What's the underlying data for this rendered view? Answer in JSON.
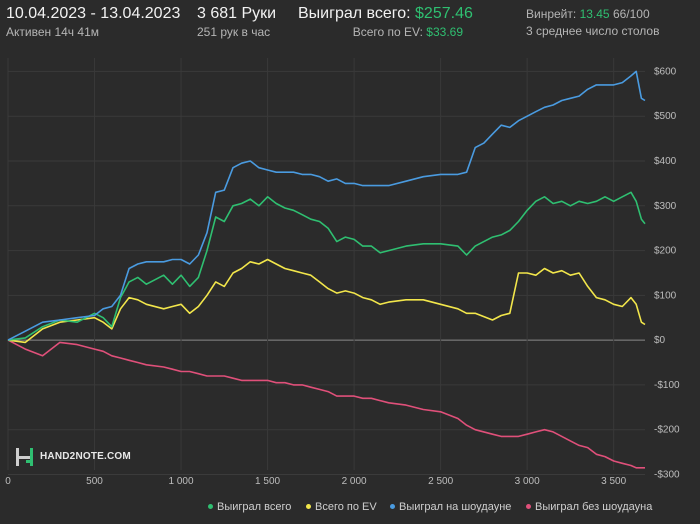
{
  "header": {
    "date_range": "10.04.2023 - 13.04.2023",
    "active_label": "Активен 14ч 41м",
    "hands": "3 681 Руки",
    "hands_per_hour": "251 рук в час",
    "won_total_label": "Выиграл всего:",
    "won_total_value": "$257.46",
    "ev_label": "Всего по EV:",
    "ev_value": "$33.69",
    "winrate_label": "Винрейт:",
    "winrate_value": "13.45",
    "winrate_extra": "66/100",
    "tables_label": "3 среднее число столов"
  },
  "logo": {
    "text": "HAND2NOTE.COM"
  },
  "colors": {
    "background": "#2b2b2b",
    "won_total": "#2fbf71",
    "ev": "#f2e64b",
    "showdown": "#4a9be0",
    "non_showdown": "#e0507a",
    "accent_green": "#2fbf71"
  },
  "chart_data": {
    "type": "line",
    "xlim": [
      0,
      3681
    ],
    "ylim": [
      -290,
      630
    ],
    "x_ticks": [
      0,
      500,
      1000,
      1500,
      2000,
      2500,
      3000,
      3500
    ],
    "x_tick_labels": [
      "0",
      "500",
      "1 000",
      "1 500",
      "2 000",
      "2 500",
      "3 000",
      "3 500"
    ],
    "y_ticks": [
      -300,
      -200,
      -100,
      0,
      100,
      200,
      300,
      400,
      500,
      600
    ],
    "y_tick_labels": [
      "-$300",
      "-$200",
      "-$100",
      "$0",
      "$100",
      "$200",
      "$300",
      "$400",
      "$500",
      "$600"
    ],
    "grid": true,
    "legend_position": "bottom-right",
    "series": [
      {
        "name": "Выиграл всего",
        "color": "#2fbf71",
        "points": [
          [
            0,
            0
          ],
          [
            100,
            5
          ],
          [
            200,
            30
          ],
          [
            300,
            45
          ],
          [
            400,
            40
          ],
          [
            500,
            60
          ],
          [
            550,
            50
          ],
          [
            600,
            30
          ],
          [
            650,
            95
          ],
          [
            700,
            130
          ],
          [
            750,
            140
          ],
          [
            800,
            125
          ],
          [
            900,
            145
          ],
          [
            950,
            125
          ],
          [
            1000,
            145
          ],
          [
            1050,
            120
          ],
          [
            1100,
            140
          ],
          [
            1150,
            200
          ],
          [
            1200,
            275
          ],
          [
            1250,
            265
          ],
          [
            1300,
            300
          ],
          [
            1350,
            305
          ],
          [
            1400,
            315
          ],
          [
            1450,
            300
          ],
          [
            1500,
            320
          ],
          [
            1550,
            305
          ],
          [
            1600,
            295
          ],
          [
            1650,
            290
          ],
          [
            1700,
            280
          ],
          [
            1750,
            270
          ],
          [
            1800,
            265
          ],
          [
            1850,
            250
          ],
          [
            1900,
            220
          ],
          [
            1950,
            230
          ],
          [
            2000,
            225
          ],
          [
            2050,
            210
          ],
          [
            2100,
            210
          ],
          [
            2150,
            195
          ],
          [
            2200,
            200
          ],
          [
            2300,
            210
          ],
          [
            2400,
            215
          ],
          [
            2500,
            215
          ],
          [
            2600,
            210
          ],
          [
            2650,
            190
          ],
          [
            2700,
            210
          ],
          [
            2800,
            230
          ],
          [
            2850,
            235
          ],
          [
            2900,
            245
          ],
          [
            2950,
            265
          ],
          [
            3000,
            290
          ],
          [
            3050,
            310
          ],
          [
            3100,
            320
          ],
          [
            3150,
            305
          ],
          [
            3200,
            310
          ],
          [
            3250,
            300
          ],
          [
            3300,
            310
          ],
          [
            3350,
            305
          ],
          [
            3400,
            310
          ],
          [
            3450,
            320
          ],
          [
            3500,
            310
          ],
          [
            3550,
            320
          ],
          [
            3600,
            330
          ],
          [
            3630,
            310
          ],
          [
            3660,
            270
          ],
          [
            3681,
            260
          ]
        ]
      },
      {
        "name": "Всего по EV",
        "color": "#f2e64b",
        "points": [
          [
            0,
            0
          ],
          [
            100,
            -5
          ],
          [
            200,
            25
          ],
          [
            300,
            40
          ],
          [
            400,
            45
          ],
          [
            500,
            50
          ],
          [
            550,
            40
          ],
          [
            600,
            25
          ],
          [
            650,
            70
          ],
          [
            700,
            95
          ],
          [
            750,
            90
          ],
          [
            800,
            80
          ],
          [
            900,
            70
          ],
          [
            950,
            75
          ],
          [
            1000,
            80
          ],
          [
            1050,
            60
          ],
          [
            1100,
            75
          ],
          [
            1150,
            100
          ],
          [
            1200,
            130
          ],
          [
            1250,
            120
          ],
          [
            1300,
            150
          ],
          [
            1350,
            160
          ],
          [
            1400,
            175
          ],
          [
            1450,
            170
          ],
          [
            1500,
            180
          ],
          [
            1550,
            170
          ],
          [
            1600,
            160
          ],
          [
            1650,
            155
          ],
          [
            1700,
            150
          ],
          [
            1750,
            145
          ],
          [
            1800,
            130
          ],
          [
            1850,
            115
          ],
          [
            1900,
            105
          ],
          [
            1950,
            110
          ],
          [
            2000,
            105
          ],
          [
            2050,
            95
          ],
          [
            2100,
            90
          ],
          [
            2150,
            80
          ],
          [
            2200,
            85
          ],
          [
            2300,
            90
          ],
          [
            2400,
            90
          ],
          [
            2500,
            80
          ],
          [
            2600,
            70
          ],
          [
            2650,
            60
          ],
          [
            2700,
            60
          ],
          [
            2800,
            45
          ],
          [
            2850,
            55
          ],
          [
            2900,
            60
          ],
          [
            2950,
            150
          ],
          [
            3000,
            150
          ],
          [
            3050,
            145
          ],
          [
            3100,
            160
          ],
          [
            3150,
            150
          ],
          [
            3200,
            155
          ],
          [
            3250,
            145
          ],
          [
            3300,
            150
          ],
          [
            3350,
            120
          ],
          [
            3400,
            95
          ],
          [
            3450,
            90
          ],
          [
            3500,
            80
          ],
          [
            3550,
            75
          ],
          [
            3600,
            95
          ],
          [
            3630,
            80
          ],
          [
            3660,
            40
          ],
          [
            3681,
            35
          ]
        ]
      },
      {
        "name": "Выиграл на шоудауне",
        "color": "#4a9be0",
        "points": [
          [
            0,
            0
          ],
          [
            100,
            20
          ],
          [
            200,
            40
          ],
          [
            300,
            45
          ],
          [
            400,
            50
          ],
          [
            500,
            55
          ],
          [
            550,
            70
          ],
          [
            600,
            75
          ],
          [
            650,
            100
          ],
          [
            700,
            160
          ],
          [
            750,
            170
          ],
          [
            800,
            175
          ],
          [
            900,
            175
          ],
          [
            950,
            180
          ],
          [
            1000,
            180
          ],
          [
            1050,
            170
          ],
          [
            1100,
            190
          ],
          [
            1150,
            240
          ],
          [
            1200,
            330
          ],
          [
            1250,
            335
          ],
          [
            1300,
            385
          ],
          [
            1350,
            395
          ],
          [
            1400,
            400
          ],
          [
            1450,
            385
          ],
          [
            1500,
            380
          ],
          [
            1550,
            375
          ],
          [
            1600,
            375
          ],
          [
            1650,
            375
          ],
          [
            1700,
            370
          ],
          [
            1750,
            370
          ],
          [
            1800,
            365
          ],
          [
            1850,
            355
          ],
          [
            1900,
            360
          ],
          [
            1950,
            350
          ],
          [
            2000,
            350
          ],
          [
            2050,
            345
          ],
          [
            2100,
            345
          ],
          [
            2150,
            345
          ],
          [
            2200,
            345
          ],
          [
            2300,
            355
          ],
          [
            2400,
            365
          ],
          [
            2500,
            370
          ],
          [
            2600,
            370
          ],
          [
            2650,
            375
          ],
          [
            2700,
            430
          ],
          [
            2750,
            440
          ],
          [
            2800,
            460
          ],
          [
            2850,
            480
          ],
          [
            2900,
            475
          ],
          [
            2950,
            490
          ],
          [
            3000,
            500
          ],
          [
            3050,
            510
          ],
          [
            3100,
            520
          ],
          [
            3150,
            525
          ],
          [
            3200,
            535
          ],
          [
            3250,
            540
          ],
          [
            3300,
            545
          ],
          [
            3350,
            560
          ],
          [
            3400,
            570
          ],
          [
            3450,
            570
          ],
          [
            3500,
            570
          ],
          [
            3550,
            575
          ],
          [
            3600,
            590
          ],
          [
            3630,
            600
          ],
          [
            3660,
            540
          ],
          [
            3681,
            535
          ]
        ]
      },
      {
        "name": "Выиграл без шоудауна",
        "color": "#e0507a",
        "points": [
          [
            0,
            0
          ],
          [
            100,
            -20
          ],
          [
            200,
            -35
          ],
          [
            300,
            -5
          ],
          [
            400,
            -10
          ],
          [
            500,
            -20
          ],
          [
            550,
            -25
          ],
          [
            600,
            -35
          ],
          [
            650,
            -40
          ],
          [
            700,
            -45
          ],
          [
            750,
            -50
          ],
          [
            800,
            -55
          ],
          [
            900,
            -60
          ],
          [
            950,
            -65
          ],
          [
            1000,
            -70
          ],
          [
            1050,
            -70
          ],
          [
            1100,
            -75
          ],
          [
            1150,
            -80
          ],
          [
            1200,
            -80
          ],
          [
            1250,
            -80
          ],
          [
            1300,
            -85
          ],
          [
            1350,
            -90
          ],
          [
            1400,
            -90
          ],
          [
            1450,
            -90
          ],
          [
            1500,
            -90
          ],
          [
            1550,
            -95
          ],
          [
            1600,
            -95
          ],
          [
            1650,
            -100
          ],
          [
            1700,
            -100
          ],
          [
            1750,
            -105
          ],
          [
            1800,
            -110
          ],
          [
            1850,
            -115
          ],
          [
            1900,
            -125
          ],
          [
            1950,
            -125
          ],
          [
            2000,
            -125
          ],
          [
            2050,
            -130
          ],
          [
            2100,
            -130
          ],
          [
            2150,
            -135
          ],
          [
            2200,
            -140
          ],
          [
            2300,
            -145
          ],
          [
            2400,
            -155
          ],
          [
            2500,
            -160
          ],
          [
            2600,
            -175
          ],
          [
            2650,
            -190
          ],
          [
            2700,
            -200
          ],
          [
            2800,
            -210
          ],
          [
            2850,
            -215
          ],
          [
            2900,
            -215
          ],
          [
            2950,
            -215
          ],
          [
            3000,
            -210
          ],
          [
            3050,
            -205
          ],
          [
            3100,
            -200
          ],
          [
            3150,
            -205
          ],
          [
            3200,
            -215
          ],
          [
            3250,
            -225
          ],
          [
            3300,
            -235
          ],
          [
            3350,
            -240
          ],
          [
            3400,
            -255
          ],
          [
            3450,
            -260
          ],
          [
            3500,
            -270
          ],
          [
            3550,
            -275
          ],
          [
            3600,
            -280
          ],
          [
            3630,
            -285
          ],
          [
            3660,
            -285
          ],
          [
            3681,
            -285
          ]
        ]
      }
    ]
  }
}
